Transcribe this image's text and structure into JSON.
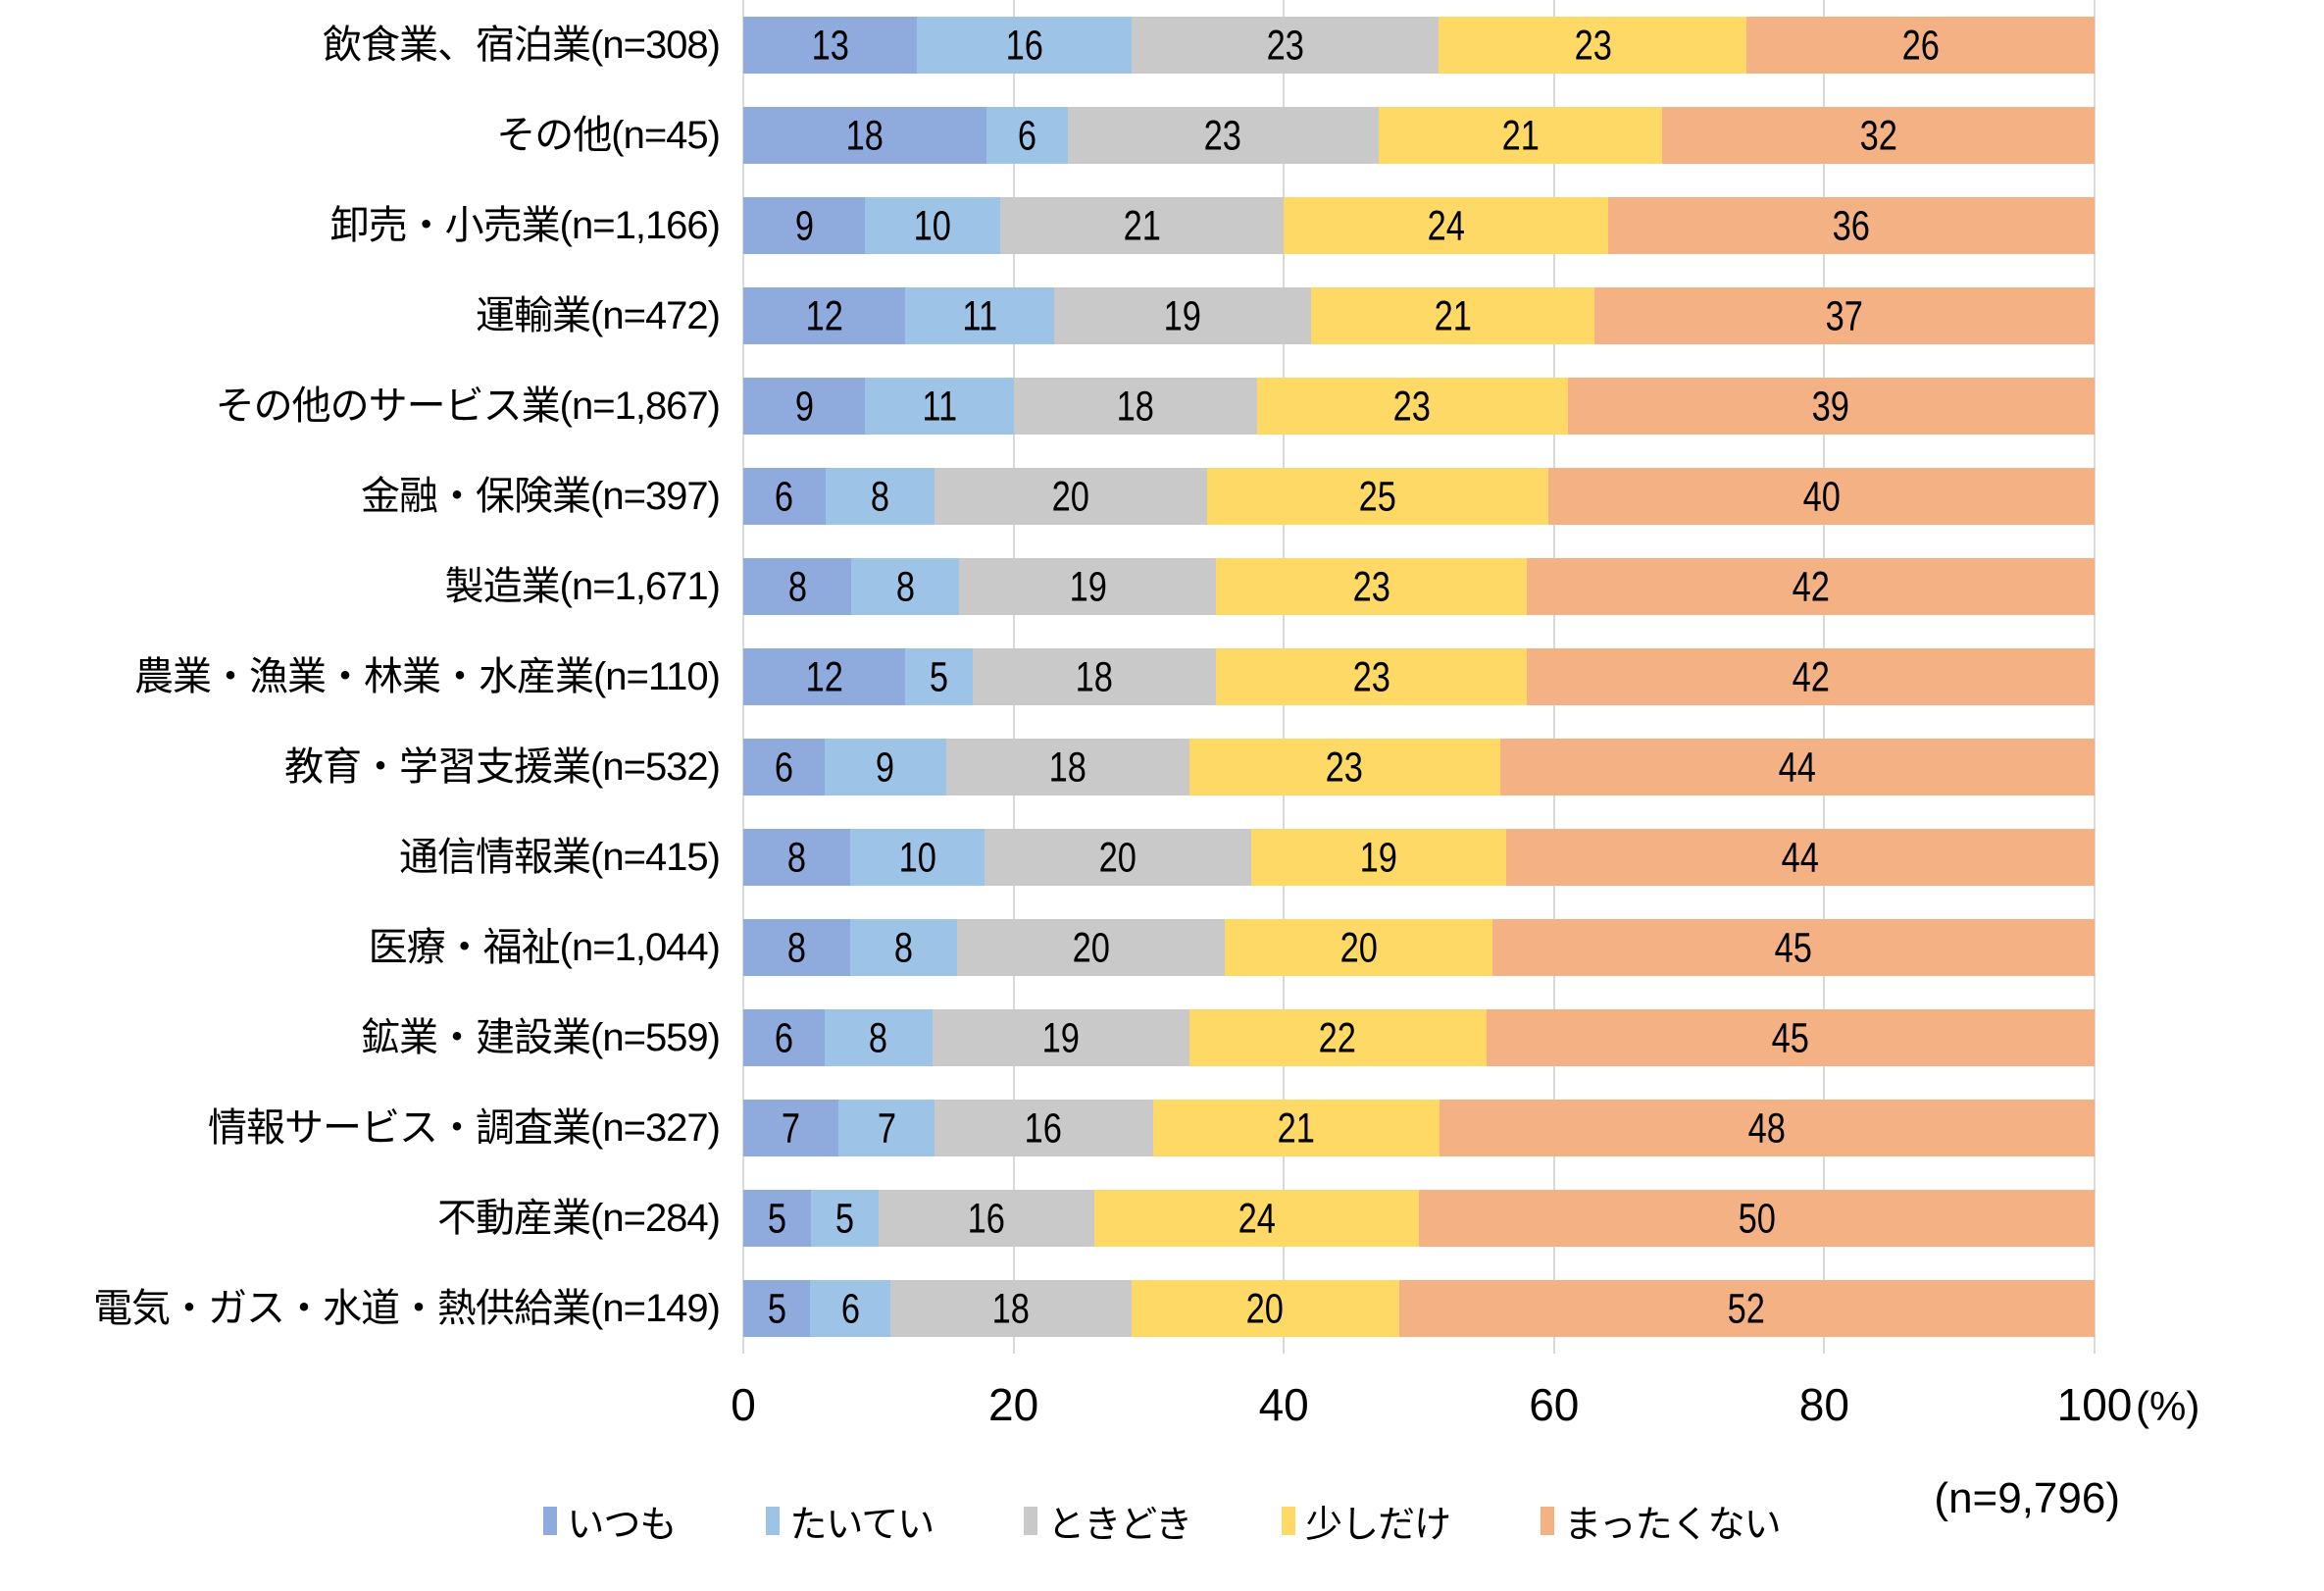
{
  "chart_data": {
    "type": "bar",
    "variant": "horizontal-100pct-stacked",
    "categories": [
      "飲食業、宿泊業(n=308)",
      "その他(n=45)",
      "卸売・小売業(n=1,166)",
      "運輸業(n=472)",
      "その他のサービス業(n=1,867)",
      "金融・保険業(n=397)",
      "製造業(n=1,671)",
      "農業・漁業・林業・水産業(n=110)",
      "教育・学習支援業(n=532)",
      "通信情報業(n=415)",
      "医療・福祉(n=1,044)",
      "鉱業・建設業(n=559)",
      "情報サービス・調査業(n=327)",
      "不動産業(n=284)",
      "電気・ガス・水道・熱供給業(n=149)"
    ],
    "series": [
      {
        "name": "いつも",
        "color": "#8FAADC",
        "values": [
          13,
          18,
          9,
          12,
          9,
          6,
          8,
          12,
          6,
          8,
          8,
          6,
          7,
          5,
          5
        ]
      },
      {
        "name": "たいてい",
        "color": "#9DC3E6",
        "values": [
          16,
          6,
          10,
          11,
          11,
          8,
          8,
          5,
          9,
          10,
          8,
          8,
          7,
          5,
          6
        ]
      },
      {
        "name": "ときどき",
        "color": "#C9C9C9",
        "values": [
          23,
          23,
          21,
          19,
          18,
          20,
          19,
          18,
          18,
          20,
          20,
          19,
          16,
          16,
          18
        ]
      },
      {
        "name": "少しだけ",
        "color": "#FFD966",
        "values": [
          23,
          21,
          24,
          21,
          23,
          25,
          23,
          23,
          23,
          19,
          20,
          22,
          21,
          24,
          20
        ]
      },
      {
        "name": "まったくない",
        "color": "#F4B183",
        "values": [
          26,
          32,
          36,
          37,
          39,
          40,
          42,
          42,
          44,
          44,
          45,
          45,
          48,
          50,
          52
        ]
      }
    ],
    "x_ticks": [
      0,
      20,
      40,
      60,
      80,
      100
    ],
    "xlim": [
      0,
      100
    ],
    "x_unit": "(%)",
    "total_note": "(n=9,796)",
    "grid": "vertical",
    "legend_position": "bottom",
    "gridline_color": "#D9D9D9",
    "text_color": "#000000",
    "background_color": "#FFFFFF"
  }
}
